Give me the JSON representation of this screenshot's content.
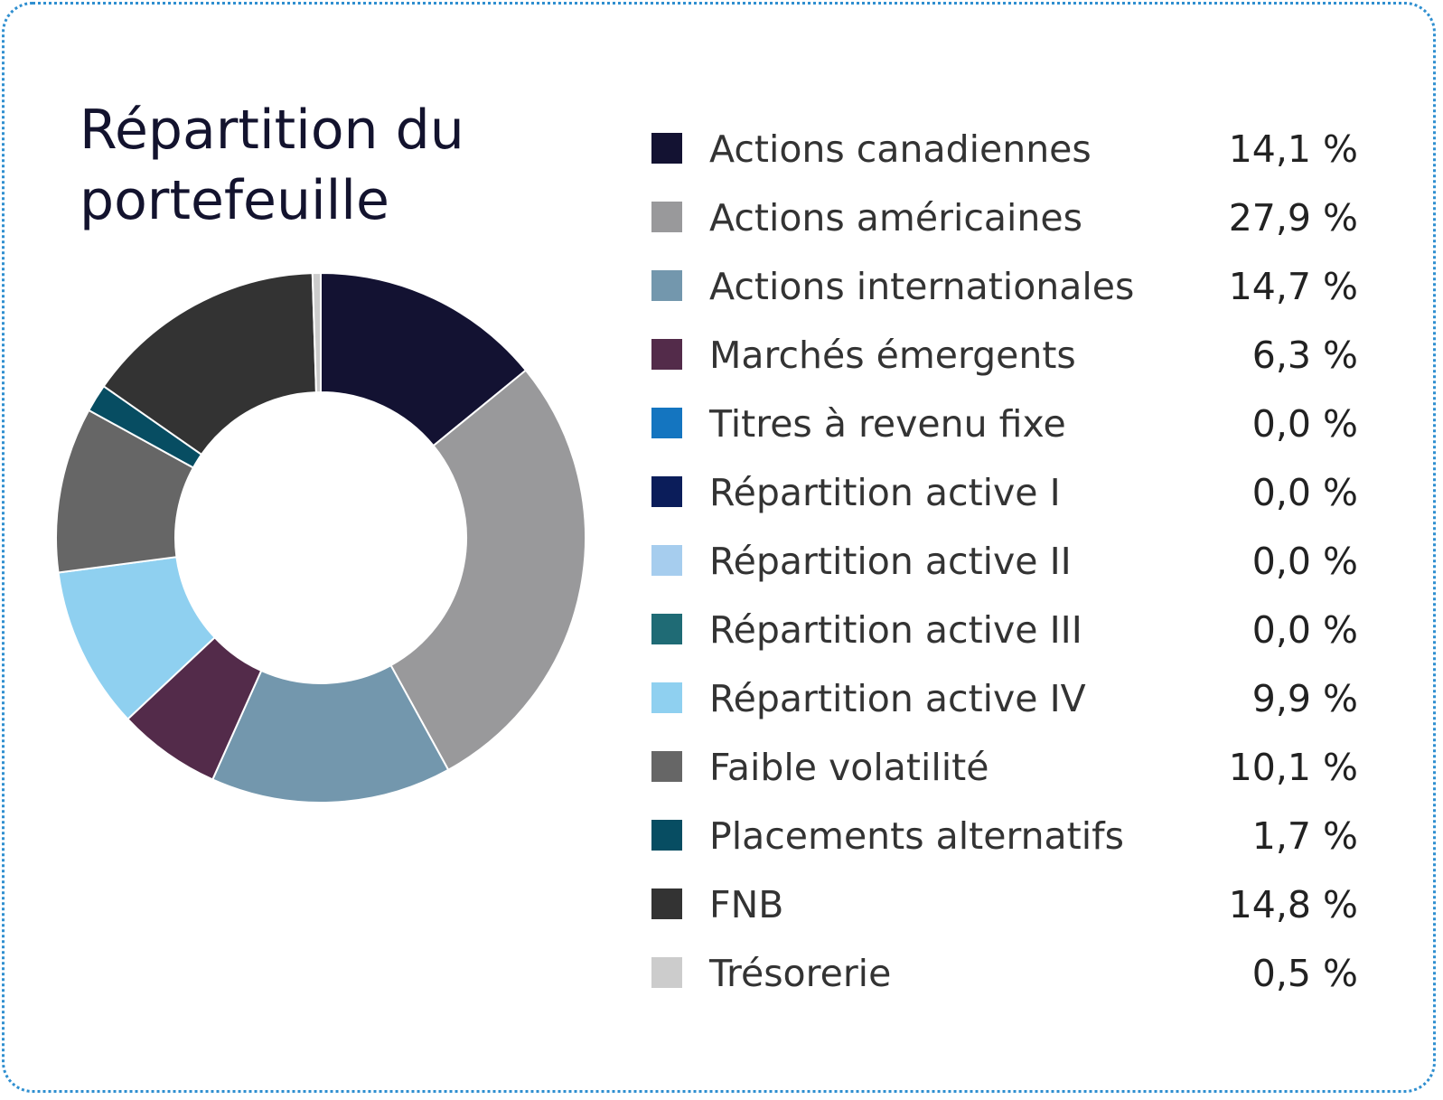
{
  "chart_data": {
    "type": "pie",
    "title": "Répartition du portefeuille",
    "title_lines": [
      "Répartition du",
      "portefeuille"
    ],
    "categories": [
      "Actions canadiennes",
      "Actions américaines",
      "Actions internationales",
      "Marchés émergents",
      "Titres à revenu fixe",
      "Répartition active I",
      "Répartition active II",
      "Répartition active III",
      "Répartition active IV",
      "Faible volatilité",
      "Placements alternatifs",
      "FNB",
      "Trésorerie"
    ],
    "values": [
      14.1,
      27.9,
      14.7,
      6.3,
      0.0,
      0.0,
      0.0,
      0.0,
      9.9,
      10.1,
      1.7,
      14.8,
      0.5
    ],
    "value_labels": [
      "14,1 %",
      "27,9 %",
      "14,7 %",
      "6,3 %",
      "0,0 %",
      "0,0 %",
      "0,0 %",
      "0,0 %",
      "9,9 %",
      "10,1 %",
      "1,7 %",
      "14,8 %",
      "0,5 %"
    ],
    "colors": [
      "#131232",
      "#99999b",
      "#7397ad",
      "#532b4a",
      "#1475c0",
      "#0b1d5a",
      "#a6cdee",
      "#1f6b75",
      "#8fd0f0",
      "#666666",
      "#074d62",
      "#333333",
      "#cccccc"
    ],
    "donut": true,
    "legend": "right"
  }
}
